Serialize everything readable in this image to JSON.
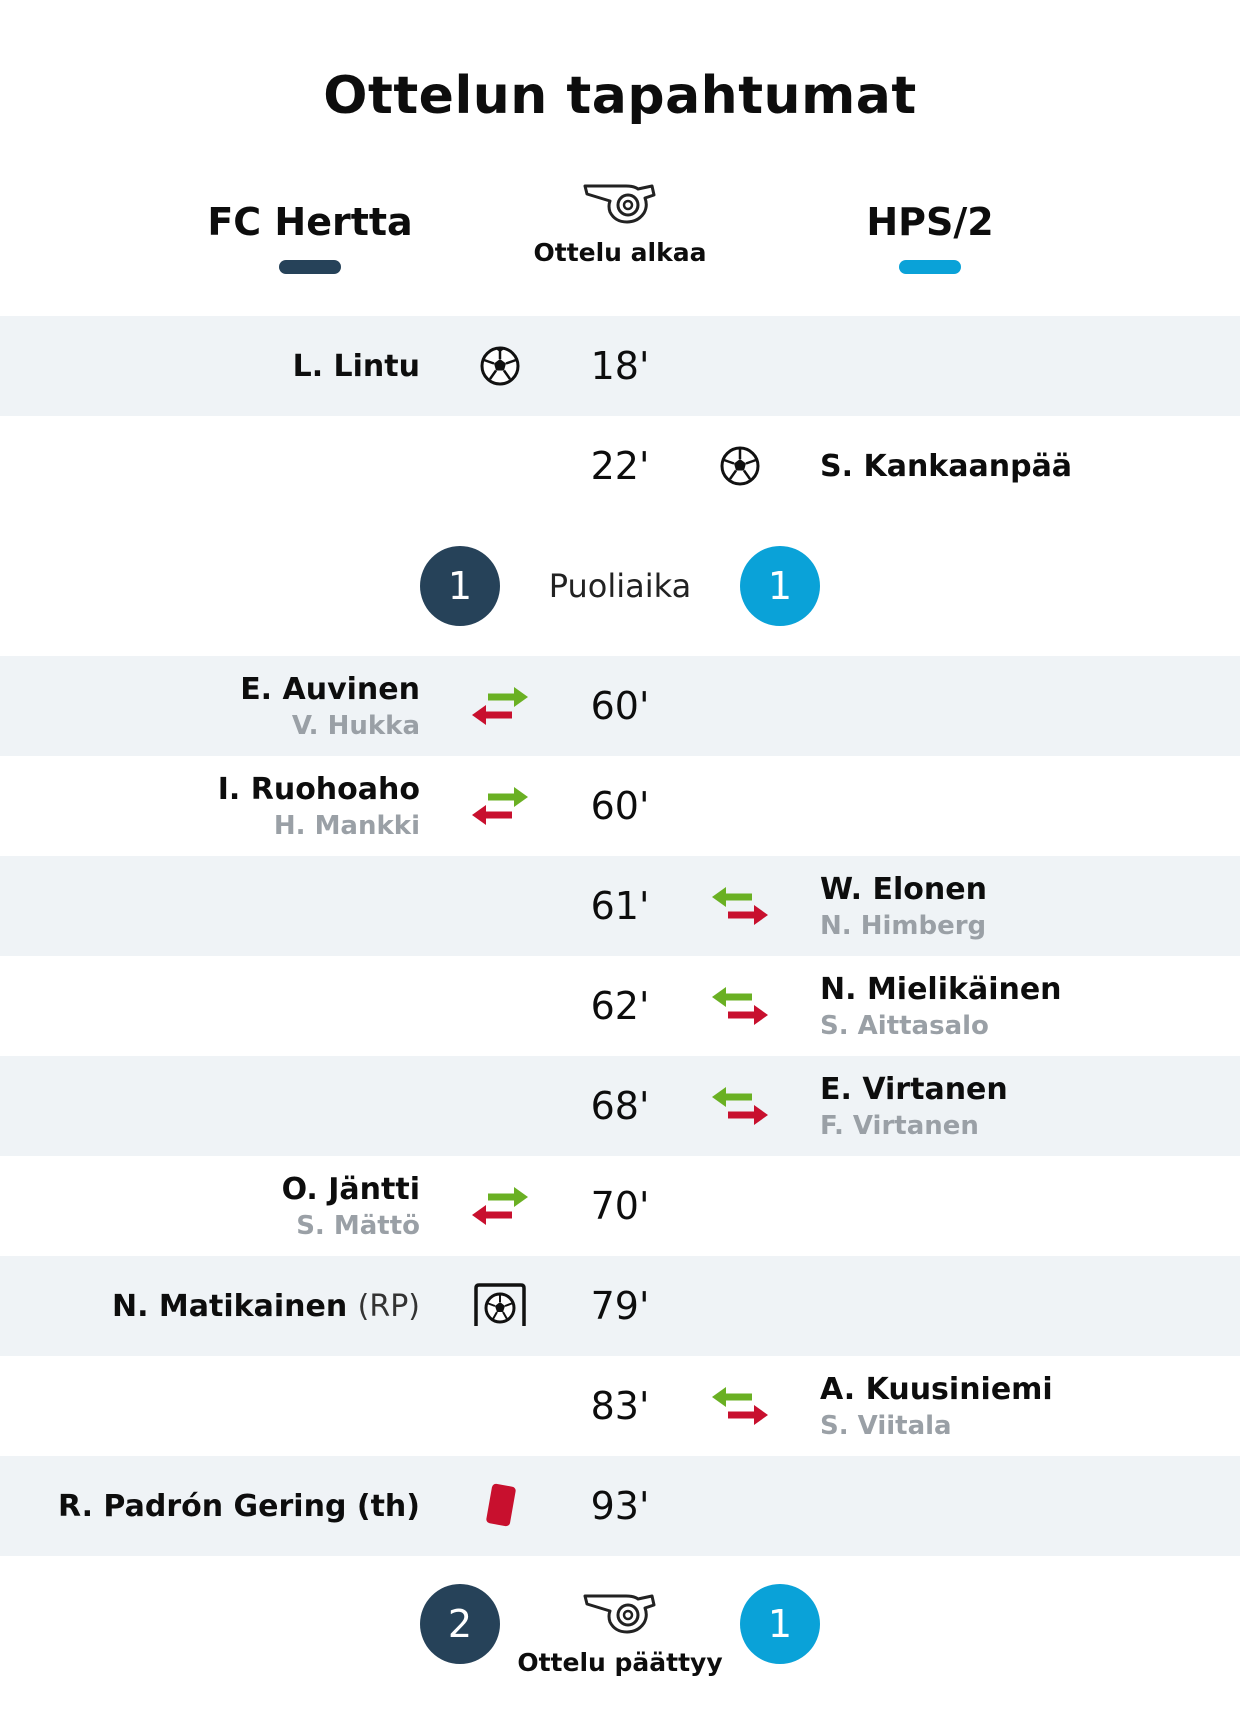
{
  "title": "Ottelun tapahtumat",
  "teams": {
    "home": {
      "name": "FC Hertta",
      "color": "#264259"
    },
    "away": {
      "name": "HPS/2",
      "color": "#0aa2d8"
    }
  },
  "start_label": "Ottelu alkaa",
  "end_label": "Ottelu päättyy",
  "halftime": {
    "label": "Puoliaika",
    "home_score": "1",
    "away_score": "1"
  },
  "final": {
    "home_score": "2",
    "away_score": "1"
  },
  "events": [
    {
      "minute": "18'",
      "side": "home",
      "type": "goal",
      "icon": "soccer-ball-icon",
      "player": "L. Lintu"
    },
    {
      "minute": "22'",
      "side": "away",
      "type": "goal",
      "icon": "soccer-ball-icon",
      "player": "S. Kankaanpää"
    },
    {
      "minute": "60'",
      "side": "home",
      "type": "substitution",
      "icon": "substitution-icon",
      "player": "E. Auvinen",
      "player_out": "V. Hukka"
    },
    {
      "minute": "60'",
      "side": "home",
      "type": "substitution",
      "icon": "substitution-icon",
      "player": "I. Ruohoaho",
      "player_out": "H. Mankki"
    },
    {
      "minute": "61'",
      "side": "away",
      "type": "substitution",
      "icon": "substitution-icon",
      "player": "W. Elonen",
      "player_out": "N. Himberg"
    },
    {
      "minute": "62'",
      "side": "away",
      "type": "substitution",
      "icon": "substitution-icon",
      "player": "N. Mielikäinen",
      "player_out": "S. Aittasalo"
    },
    {
      "minute": "68'",
      "side": "away",
      "type": "substitution",
      "icon": "substitution-icon",
      "player": "E. Virtanen",
      "player_out": "F. Virtanen"
    },
    {
      "minute": "70'",
      "side": "home",
      "type": "substitution",
      "icon": "substitution-icon",
      "player": "O. Jäntti",
      "player_out": "S. Mättö"
    },
    {
      "minute": "79'",
      "side": "home",
      "type": "penalty-goal",
      "icon": "penalty-goal-icon",
      "player": "N. Matikainen",
      "tag": "(RP)"
    },
    {
      "minute": "83'",
      "side": "away",
      "type": "substitution",
      "icon": "substitution-icon",
      "player": "A. Kuusiniemi",
      "player_out": "S. Viitala"
    },
    {
      "minute": "93'",
      "side": "home",
      "type": "red-card",
      "icon": "red-card-icon",
      "player": "R. Padrón Gering (th)"
    }
  ]
}
